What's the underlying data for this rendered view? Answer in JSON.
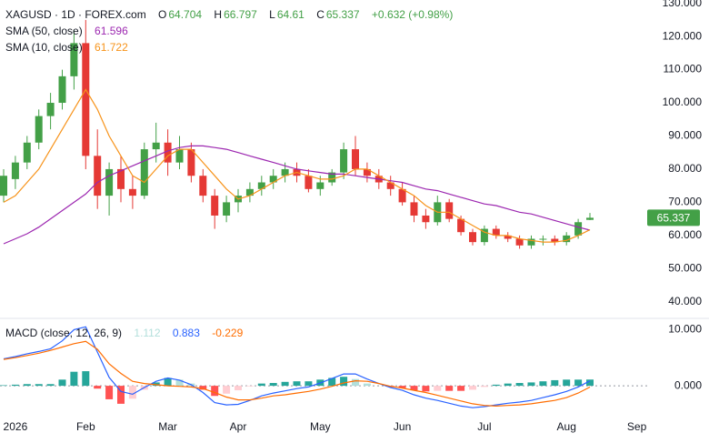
{
  "chart_data": [
    {
      "type": "candlestick",
      "symbol": "XAGUSD · 1D · FOREX.com",
      "ohlc_labels": [
        "O",
        "H",
        "L",
        "C"
      ],
      "change_label": "+0.632 (+0.98%)",
      "categories": [
        null,
        "2026",
        null,
        null,
        null,
        null,
        null,
        "Feb",
        null,
        null,
        null,
        null,
        null,
        null,
        "Mar",
        null,
        null,
        null,
        null,
        null,
        "Apr",
        null,
        null,
        null,
        null,
        null,
        null,
        "May",
        null,
        null,
        null,
        null,
        null,
        null,
        "Jun",
        null,
        null,
        null,
        null,
        null,
        null,
        "Jul",
        null,
        null,
        null,
        null,
        null,
        null,
        "Aug",
        null,
        null,
        null,
        null,
        null,
        "Sep"
      ],
      "open": [
        72,
        77,
        82,
        88,
        96,
        100,
        108,
        118,
        84,
        72,
        80,
        74,
        72,
        86,
        88,
        82,
        86,
        78,
        72,
        66,
        70,
        72,
        74,
        76,
        78,
        80,
        78,
        74,
        76,
        79,
        86,
        80,
        78,
        76,
        74,
        70,
        66,
        64,
        70,
        65,
        61,
        58,
        62,
        60,
        59,
        57,
        59,
        59,
        58,
        60,
        64.704,
        null,
        null,
        null,
        null
      ],
      "high": [
        80,
        84,
        90,
        98,
        103,
        110,
        122,
        125,
        92,
        82,
        84,
        78,
        88,
        94,
        92,
        90,
        88,
        80,
        74,
        72,
        74,
        76,
        78,
        80,
        82,
        82,
        80,
        78,
        80,
        88,
        90,
        82,
        80,
        78,
        76,
        72,
        68,
        72,
        71,
        66,
        62,
        63,
        63,
        61,
        60,
        60,
        60,
        60,
        61,
        65,
        66.797,
        null,
        null,
        null,
        null
      ],
      "low": [
        70,
        74,
        80,
        86,
        92,
        98,
        104,
        80,
        68,
        66,
        70,
        68,
        71,
        82,
        78,
        80,
        76,
        70,
        62,
        64,
        67,
        70,
        72,
        74,
        76,
        76,
        73,
        72,
        75,
        77,
        78,
        76,
        74,
        72,
        69,
        64,
        62,
        63,
        64,
        60,
        57,
        57,
        59,
        58,
        56,
        56,
        57,
        57,
        57,
        59,
        64.61,
        null,
        null,
        null,
        null
      ],
      "close": [
        78,
        82,
        88,
        96,
        100,
        108,
        118,
        84,
        72,
        80,
        74,
        72,
        86,
        88,
        82,
        86,
        78,
        72,
        66,
        70,
        72,
        74,
        76,
        78,
        80,
        78,
        74,
        76,
        79,
        86,
        80,
        78,
        76,
        74,
        70,
        66,
        64,
        70,
        65,
        61,
        58,
        62,
        60,
        59,
        57,
        59,
        59,
        58,
        60,
        64,
        65.337,
        null,
        null,
        null,
        null
      ],
      "up_color": "#43a047",
      "down_color": "#e53935",
      "series": [
        {
          "name": "SMA (50, close)",
          "color": "#9c27b0",
          "values": [
            57.5,
            59,
            60.5,
            62.5,
            65,
            67.5,
            70,
            72.5,
            76,
            78,
            79.5,
            81,
            82.5,
            84,
            85.5,
            86.5,
            87,
            87,
            86.5,
            86,
            85,
            84,
            83,
            82,
            81,
            80,
            79.5,
            79,
            78.5,
            78.5,
            78,
            77.5,
            77,
            76.5,
            76,
            75,
            74,
            73.5,
            72.5,
            71.5,
            70.5,
            69.5,
            69,
            68,
            67,
            66.5,
            65.5,
            64.5,
            63.5,
            62.5,
            61.596,
            null,
            null,
            null,
            null
          ]
        },
        {
          "name": "SMA (10, close)",
          "color": "#f7931a",
          "values": [
            70,
            72,
            76,
            80,
            86,
            92,
            98,
            104,
            98,
            90,
            84,
            78,
            76,
            80,
            84,
            86,
            86,
            82,
            78,
            74,
            71,
            72,
            74,
            76,
            78,
            79,
            78,
            77,
            77,
            78,
            80,
            80,
            78,
            76,
            74,
            72,
            69,
            67,
            67,
            65,
            63,
            61,
            60,
            60,
            59,
            58.5,
            58,
            58,
            58.5,
            60,
            61.722,
            null,
            null,
            null,
            null
          ]
        }
      ],
      "ylim": [
        35,
        131
      ],
      "yticks": [
        {
          "value": 40,
          "label": "40.000"
        },
        {
          "value": 50,
          "label": "50.000"
        },
        {
          "value": 60,
          "label": "60.000"
        },
        {
          "value": 70,
          "label": "70.000"
        },
        {
          "value": 80,
          "label": "80.000"
        },
        {
          "value": 90,
          "label": "90.000"
        },
        {
          "value": 100,
          "label": "100.000"
        },
        {
          "value": 110,
          "label": "110.000"
        },
        {
          "value": 120,
          "label": "120.000"
        },
        {
          "value": 130,
          "label": "130.000"
        }
      ],
      "grid": false
    },
    {
      "type": "macd",
      "title": "MACD (close, 12, 26, 9)",
      "histogram": {
        "colors": [
          "#26a69a",
          "#b2dfdb",
          "#ff5252",
          "#ffcdd2"
        ],
        "values": [
          0.1,
          0.2,
          0.3,
          0.3,
          0.3,
          1.1,
          2.5,
          2.6,
          -0.5,
          -2.4,
          -3.2,
          -2.3,
          -0.7,
          0.6,
          1.4,
          1.1,
          0.4,
          -0.7,
          -1.8,
          -1.4,
          -0.8,
          -0.1,
          0.4,
          0.5,
          0.7,
          0.8,
          0.8,
          1.1,
          1.4,
          1.6,
          1.2,
          0.4,
          0,
          -0.2,
          -0.4,
          -0.8,
          -1.0,
          -0.9,
          -0.9,
          -0.9,
          -0.7,
          -0.2,
          0.2,
          0.4,
          0.5,
          0.6,
          0.8,
          1.0,
          1.1,
          1.1,
          1.112,
          null,
          null,
          null,
          null
        ]
      },
      "series": [
        {
          "color": "#2962ff",
          "values": [
            4.8,
            5.2,
            5.7,
            6.1,
            6.6,
            8,
            10,
            10.5,
            6,
            1.5,
            -1,
            -1.5,
            -0.3,
            0.8,
            1.4,
            1,
            0.2,
            -1.2,
            -3,
            -3.4,
            -3.3,
            -2.6,
            -1.8,
            -1.3,
            -0.9,
            -0.5,
            -0.2,
            0.5,
            1.3,
            2.1,
            2.1,
            1.2,
            0.4,
            -0.3,
            -0.8,
            -1.6,
            -2.2,
            -2.6,
            -3.1,
            -3.6,
            -3.9,
            -3.7,
            -3.4,
            -3.1,
            -2.9,
            -2.6,
            -2.1,
            -1.6,
            -1,
            -0.2,
            0.883,
            null,
            null,
            null,
            null
          ]
        },
        {
          "color": "#ff6d00",
          "values": [
            4.7,
            5.0,
            5.4,
            5.8,
            6.3,
            6.9,
            7.5,
            7.9,
            6.5,
            3.9,
            2.2,
            0.8,
            0.4,
            0.2,
            0,
            -0.1,
            -0.2,
            -0.5,
            -1.2,
            -2.0,
            -2.5,
            -2.5,
            -2.2,
            -1.8,
            -1.6,
            -1.3,
            -1.0,
            -0.6,
            -0.1,
            0.5,
            0.9,
            0.8,
            0.4,
            -0.1,
            -0.4,
            -0.8,
            -1.2,
            -1.7,
            -2.2,
            -2.7,
            -3.2,
            -3.5,
            -3.6,
            -3.5,
            -3.4,
            -3.2,
            -2.9,
            -2.6,
            -2.1,
            -1.3,
            -0.229,
            null,
            null,
            null,
            null
          ]
        }
      ],
      "ylim": [
        -5,
        12
      ],
      "yticks": [
        {
          "value": 0,
          "label": "0.000"
        },
        {
          "value": 10,
          "label": "10.000"
        }
      ],
      "zero_line": true
    }
  ]
}
